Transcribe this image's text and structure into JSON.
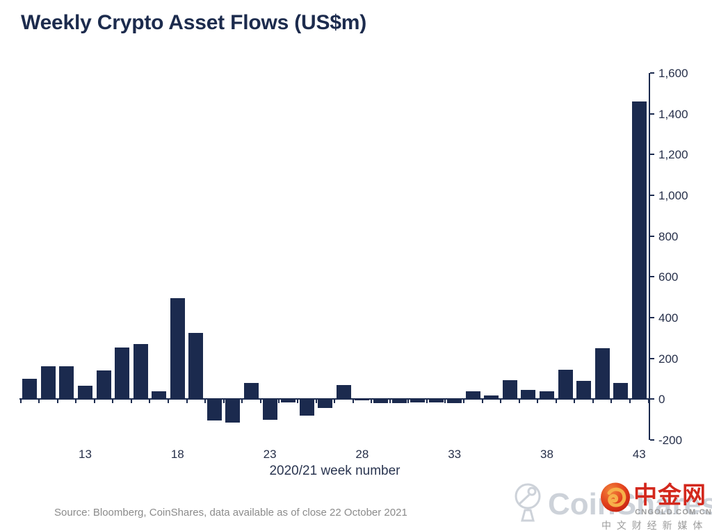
{
  "chart_data": {
    "type": "bar",
    "title": "Weekly Crypto Asset Flows (US$m)",
    "xlabel": "2020/21 week number",
    "ylabel": "",
    "x": [
      10,
      11,
      12,
      13,
      14,
      15,
      16,
      17,
      18,
      19,
      20,
      21,
      22,
      23,
      24,
      25,
      26,
      27,
      28,
      29,
      30,
      31,
      32,
      33,
      34,
      35,
      36,
      37,
      38,
      39,
      40,
      41,
      42,
      43
    ],
    "values": [
      100,
      160,
      160,
      65,
      140,
      255,
      270,
      40,
      495,
      325,
      -105,
      -115,
      80,
      -100,
      -15,
      -80,
      -45,
      70,
      -5,
      -20,
      -20,
      -15,
      -15,
      -20,
      40,
      20,
      95,
      45,
      40,
      145,
      90,
      250,
      80,
      1460
    ],
    "ylim": [
      -200,
      1600
    ],
    "y_ticks": [
      -200,
      0,
      200,
      400,
      600,
      800,
      1000,
      1200,
      1400,
      1600
    ],
    "y_tick_labels": [
      "-200",
      "0",
      "200",
      "400",
      "600",
      "800",
      "1,000",
      "1,200",
      "1,400",
      "1,600"
    ],
    "x_tick_weeks": [
      13,
      18,
      23,
      28,
      33,
      38,
      43
    ],
    "x_tick_labels": [
      "13",
      "18",
      "23",
      "28",
      "33",
      "38",
      "43"
    ],
    "bar_color": "#1b2a4e",
    "grid": "off",
    "legend": "none",
    "y_axis_side": "right"
  },
  "source_note": "Source: Bloomberg, CoinShares, data available as of close 22 October 2021",
  "watermarks": {
    "coinshares": {
      "text": "CoinShares",
      "color": "#cdd2d9"
    },
    "cngold": {
      "name": "中金网",
      "domain": "CNGOLD.COM.CN",
      "tagline": "中 文 财 经 新 媒 体",
      "red": "#d3281d",
      "gray": "#9b9b9b"
    }
  }
}
